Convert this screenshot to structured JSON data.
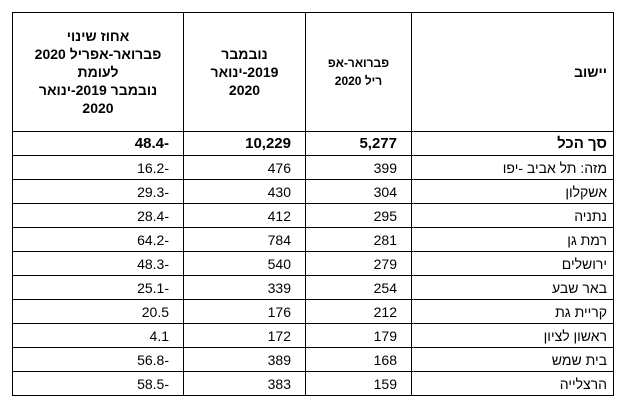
{
  "table": {
    "header": [
      [
        "יישוב"
      ],
      [
        "פברואר-אפ",
        "ריל 2020"
      ],
      [
        "נובמבר",
        "2019-ינואר",
        "2020"
      ],
      [
        "אחוז שינוי",
        "פברואר-אפריל 2020",
        "לעומת",
        "נובמבר 2019-ינואר",
        "2020"
      ]
    ],
    "rows": [
      [
        "סך הכל",
        "5,277",
        "10,229",
        "48.4-"
      ],
      [
        "מזה:  תל אביב -יפו",
        "399",
        "476",
        "16.2-"
      ],
      [
        "אשקלון",
        "304",
        "430",
        "29.3-"
      ],
      [
        "נתניה",
        "295",
        "412",
        "28.4-"
      ],
      [
        "רמת גן",
        "281",
        "784",
        "64.2-"
      ],
      [
        "ירושלים",
        "279",
        "540",
        "48.3-"
      ],
      [
        "באר שבע",
        "254",
        "339",
        "25.1-"
      ],
      [
        "קריית גת",
        "212",
        "176",
        "20.5"
      ],
      [
        "ראשון לציון",
        "179",
        "172",
        "4.1"
      ],
      [
        "בית שמש",
        "168",
        "389",
        "56.8-"
      ],
      [
        "הרצלייה",
        "159",
        "383",
        "58.5-"
      ]
    ]
  }
}
